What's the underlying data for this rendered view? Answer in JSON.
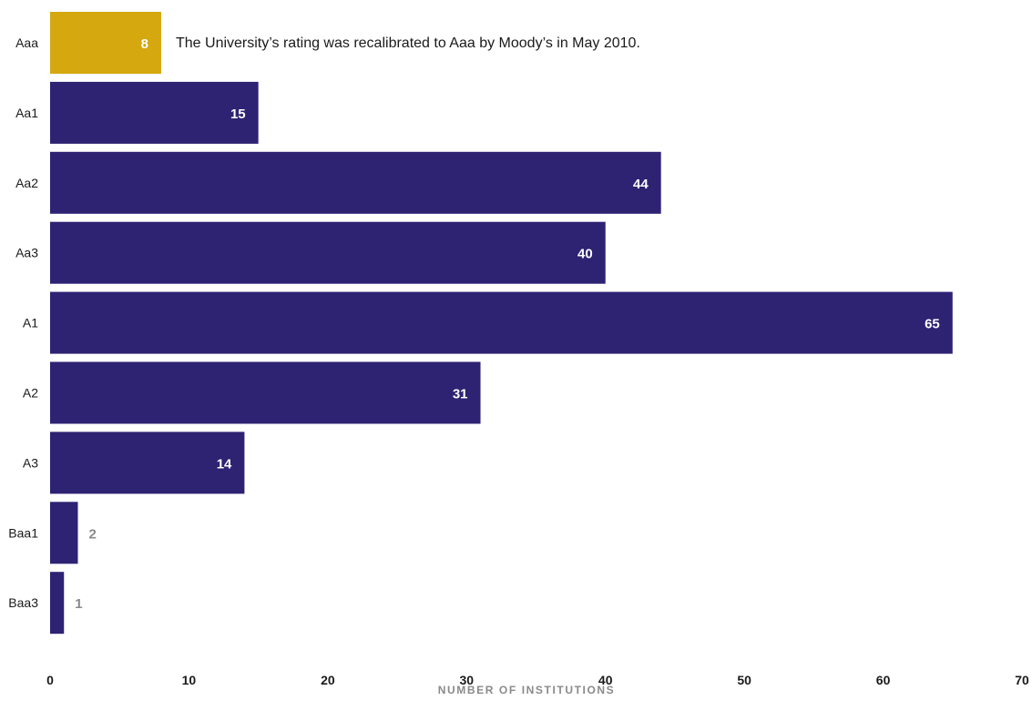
{
  "chart_data": {
    "type": "bar",
    "orientation": "horizontal",
    "categories": [
      "Aaa",
      "Aa1",
      "Aa2",
      "Aa3",
      "A1",
      "A2",
      "A3",
      "Baa1",
      "Baa3"
    ],
    "values": [
      8,
      15,
      44,
      40,
      65,
      31,
      14,
      2,
      1
    ],
    "highlight_index": 0,
    "colors": {
      "bar": "#2e2273",
      "highlight": "#d4a80e",
      "outside_label": "#8a8a8a"
    },
    "xlabel": "NUMBER OF INSTITUTIONS",
    "ylabel": "",
    "xlim": [
      0,
      70
    ],
    "xticks": [
      0,
      10,
      20,
      30,
      40,
      50,
      60,
      70
    ],
    "grid": false,
    "annotation": "The University’s rating was recalibrated to Aaa by Moody’s in May 2010."
  }
}
